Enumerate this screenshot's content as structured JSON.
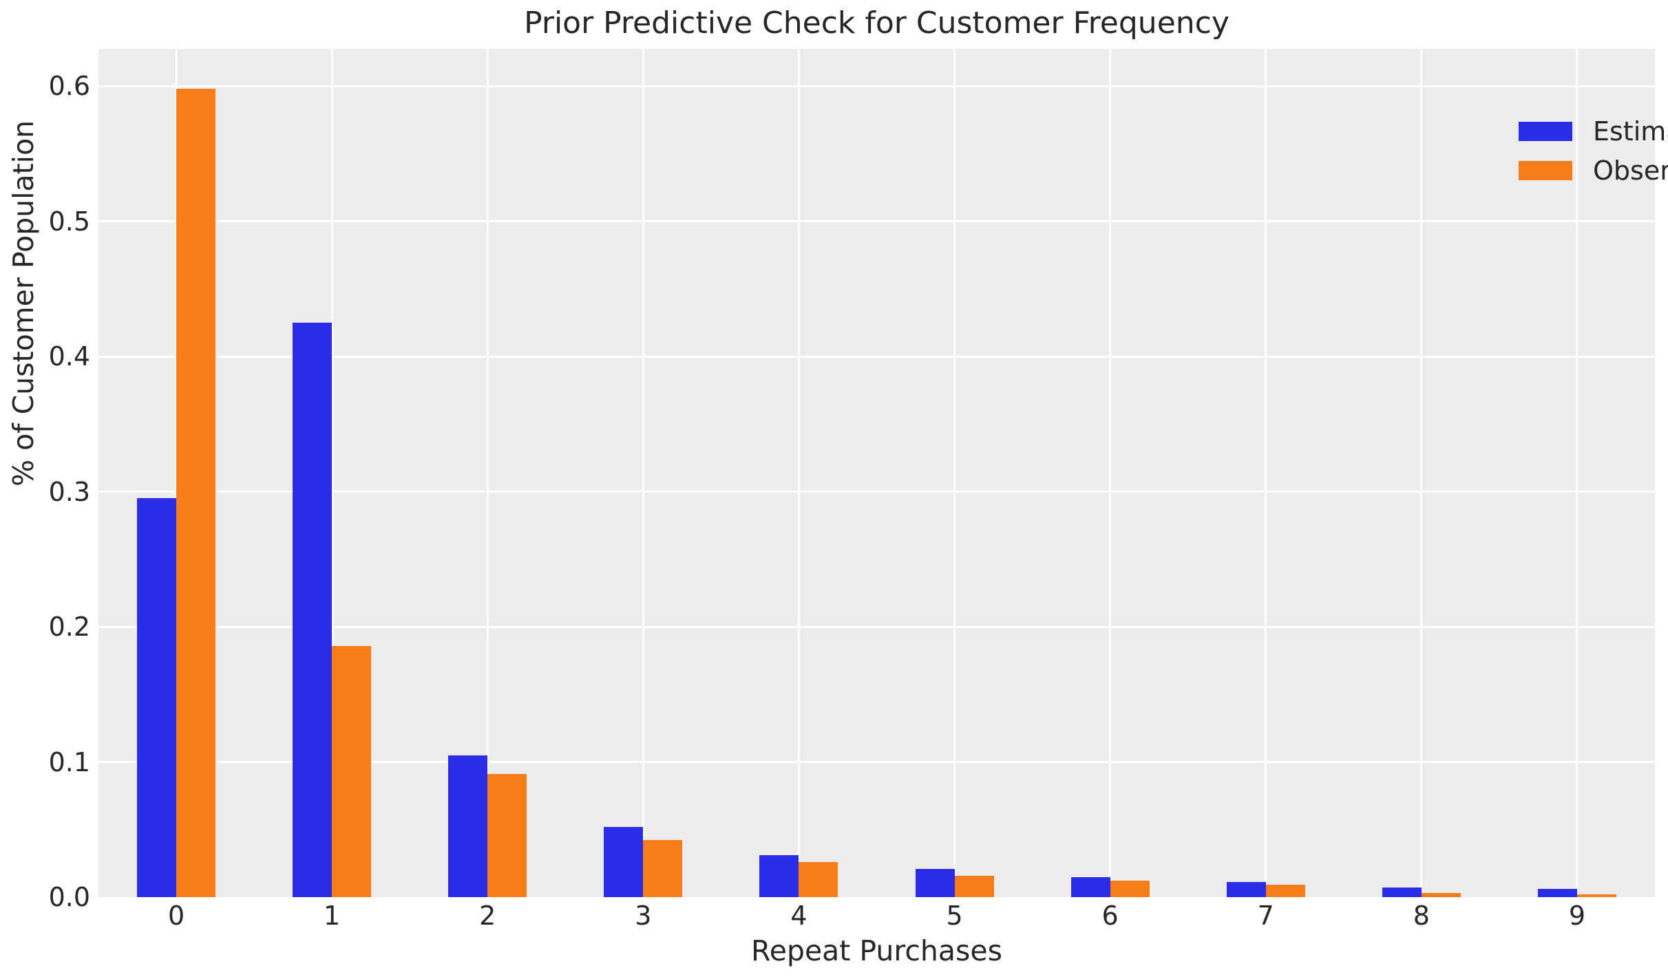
{
  "chart_data": {
    "type": "bar",
    "title": "Prior Predictive Check for Customer Frequency",
    "xlabel": "Repeat Purchases",
    "ylabel": "% of Customer Population",
    "categories": [
      "0",
      "1",
      "2",
      "3",
      "4",
      "5",
      "6",
      "7",
      "8",
      "9"
    ],
    "series": [
      {
        "name": "Estimated",
        "color": "#2b2de6",
        "values": [
          0.295,
          0.425,
          0.105,
          0.052,
          0.031,
          0.021,
          0.015,
          0.011,
          0.007,
          0.006
        ]
      },
      {
        "name": "Observed",
        "color": "#f87c18",
        "values": [
          0.598,
          0.186,
          0.091,
          0.042,
          0.026,
          0.016,
          0.012,
          0.009,
          0.003,
          0.002
        ]
      }
    ],
    "ylim": [
      0,
      0.6275
    ],
    "yticks": [
      0.0,
      0.1,
      0.2,
      0.3,
      0.4,
      0.5,
      0.6
    ],
    "ytick_labels": [
      "0.0",
      "0.1",
      "0.2",
      "0.3",
      "0.4",
      "0.5",
      "0.6"
    ],
    "grid": true,
    "grid_color": "#ffffff",
    "plot_background": "#ececec",
    "text_color": "#262626",
    "legend_position": "upper right",
    "legend_frame": false
  }
}
